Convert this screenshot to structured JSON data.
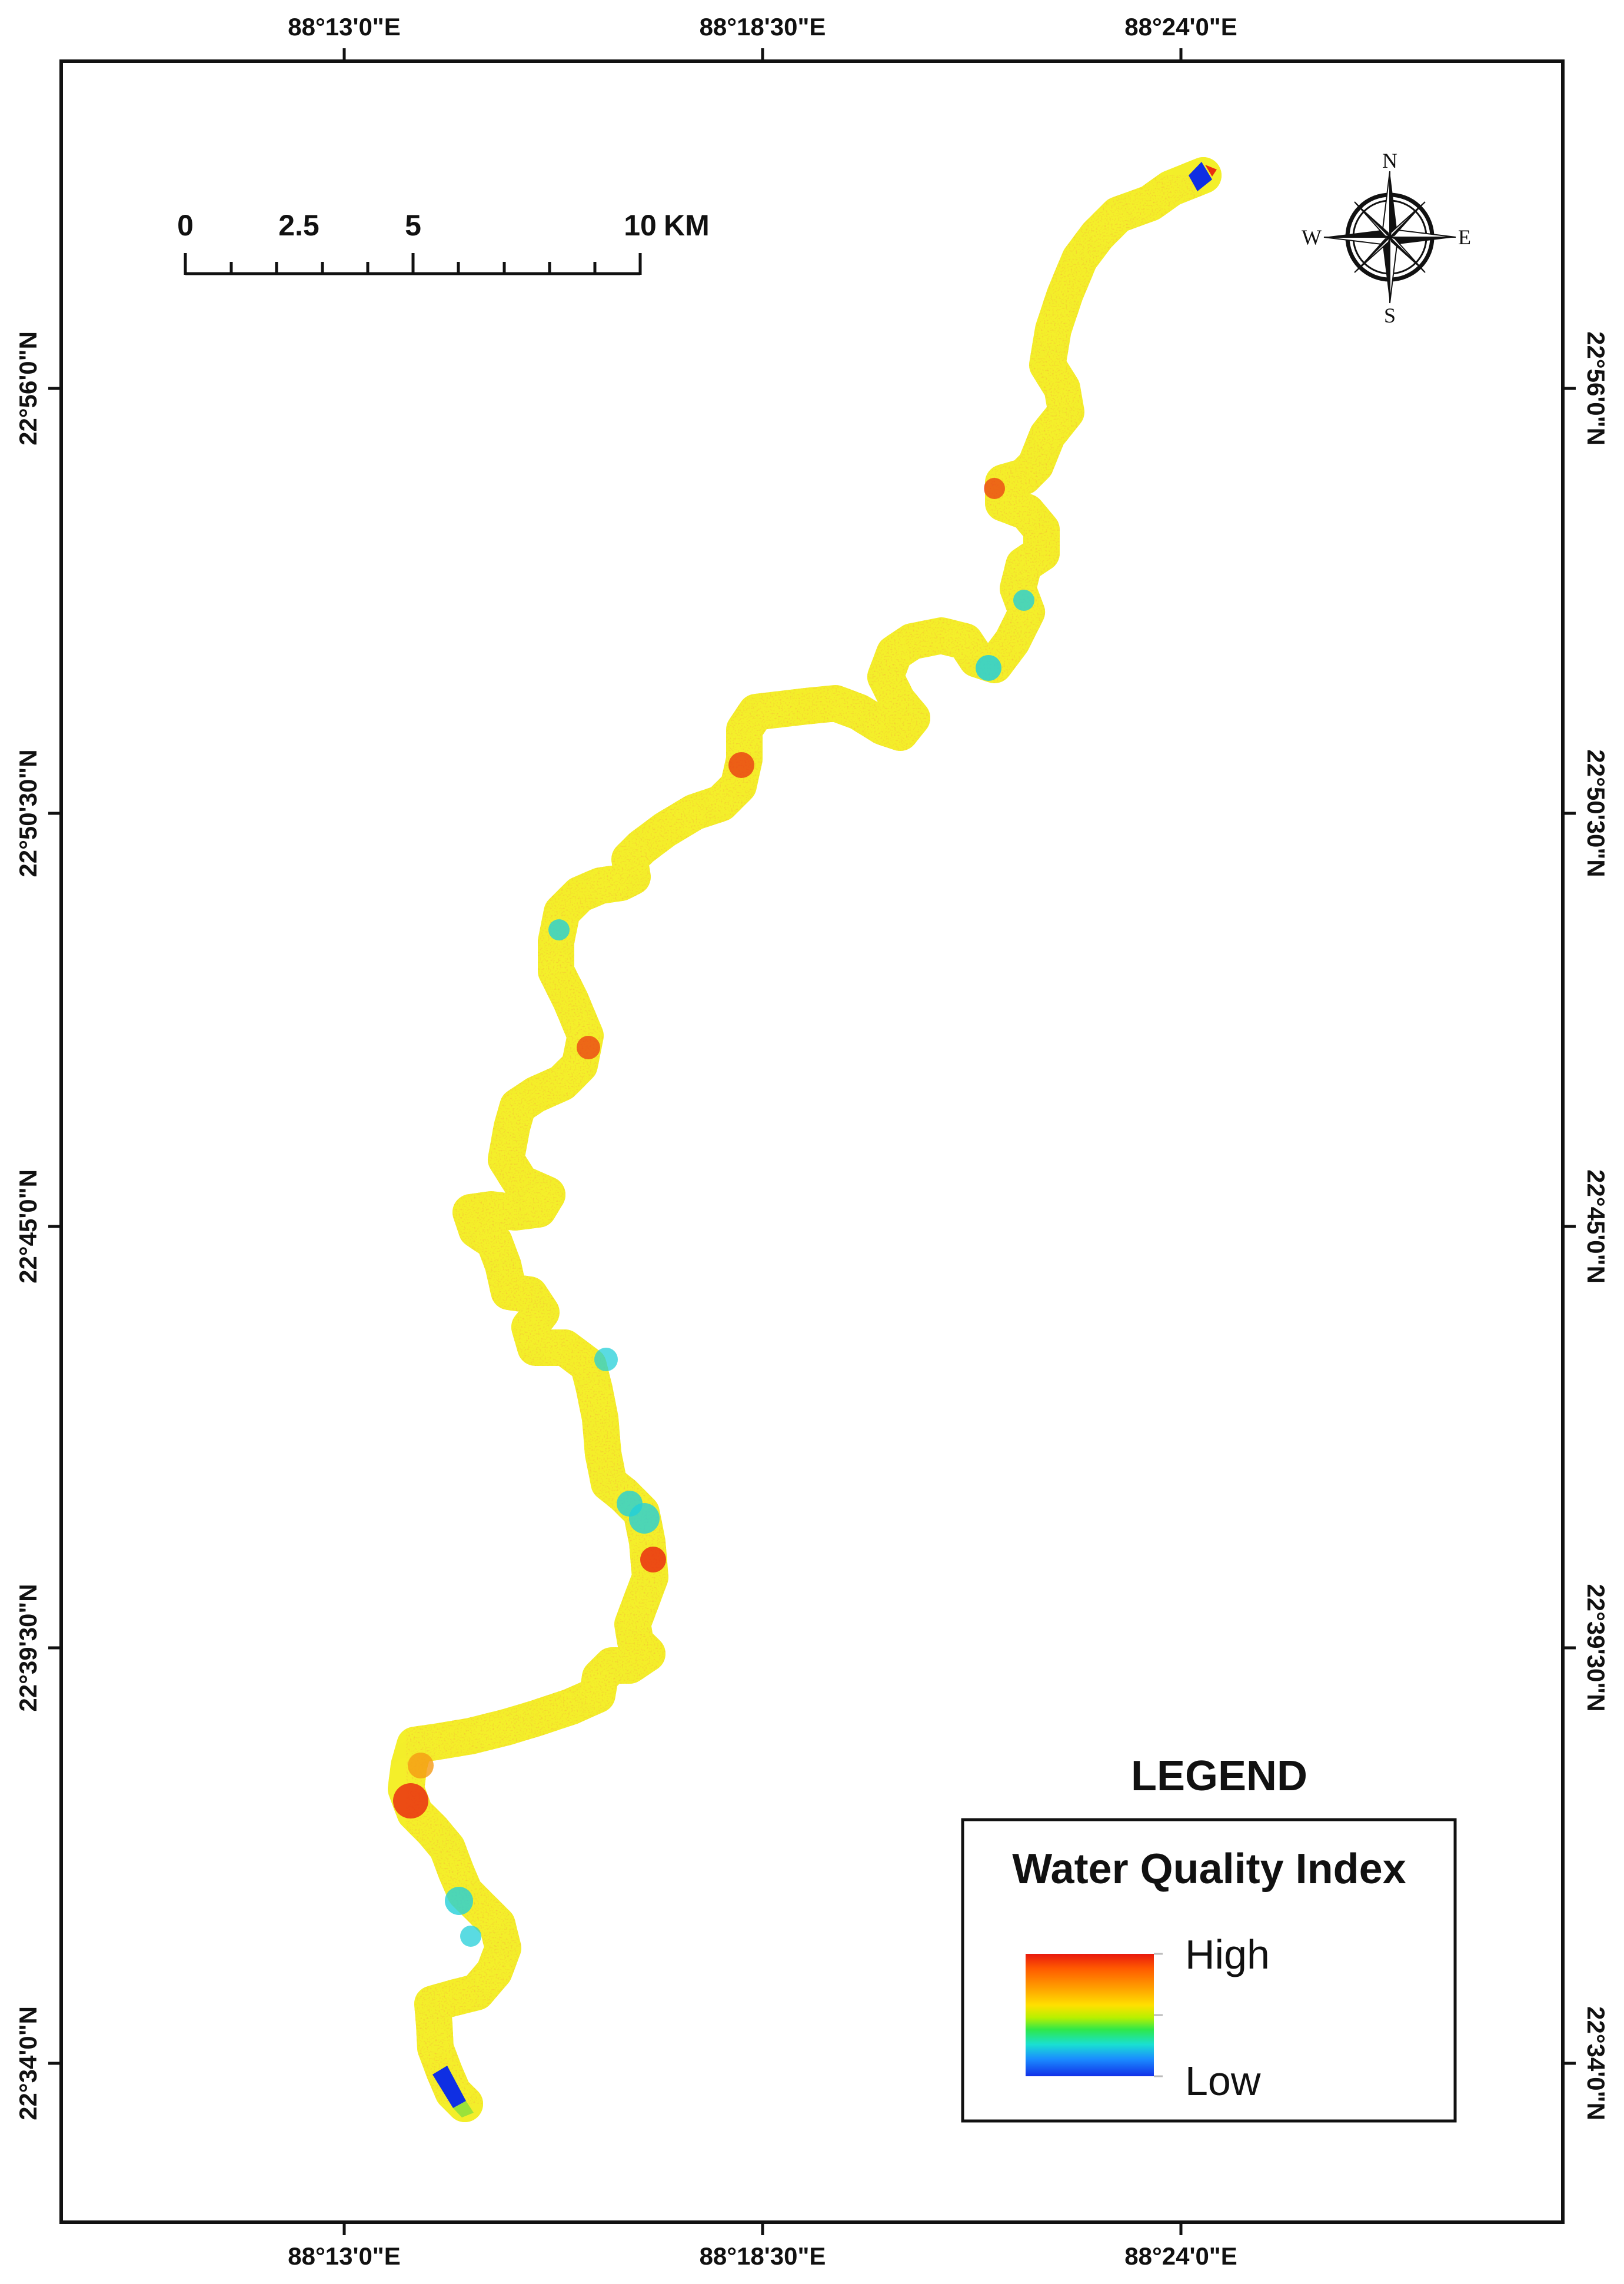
{
  "map": {
    "top_longitudes": [
      "88°13'0\"E",
      "88°18'30\"E",
      "88°24'0\"E"
    ],
    "bottom_longitudes": [
      "88°13'0\"E",
      "88°18'30\"E",
      "88°24'0\"E"
    ],
    "left_latitudes": [
      "22°56'0\"N",
      "22°50'30\"N",
      "22°45'0\"N",
      "22°39'30\"N",
      "22°34'0\"N"
    ],
    "right_latitudes": [
      "22°56'0\"N",
      "22°50'30\"N",
      "22°45'0\"N",
      "22°39'30\"N",
      "22°34'0\"N"
    ]
  },
  "scale_bar": {
    "labels": [
      "0",
      "2.5",
      "5",
      "10"
    ],
    "unit": "KM"
  },
  "compass": {
    "n": "N",
    "s": "S",
    "e": "E",
    "w": "W"
  },
  "legend": {
    "title": "LEGEND",
    "subtitle": "Water Quality Index",
    "high_label": "High",
    "low_label": "Low",
    "ramp_colors": [
      "#e8190e",
      "#ff7a00",
      "#ffd400",
      "#b8f000",
      "#2ee84a",
      "#19e0d2",
      "#1a8cff",
      "#1230e8"
    ]
  },
  "colors": {
    "river_main": "#f3ee2a",
    "river_green": "#9be23a",
    "river_cyan": "#23cfd8",
    "river_red": "#ea2f10",
    "river_orange": "#f59a14",
    "end_blue": "#0f2fe3"
  }
}
